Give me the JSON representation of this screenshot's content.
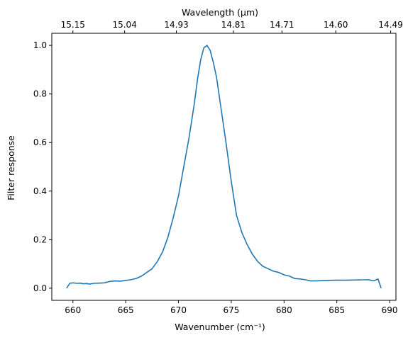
{
  "chart_data": {
    "type": "line",
    "xlabel": "Wavenumber (cm⁻¹)",
    "ylabel": "Filter response",
    "top_xlabel": "Wavelength (μm)",
    "xlim": [
      658.0,
      690.6
    ],
    "ylim": [
      -0.05,
      1.05
    ],
    "x_ticks": [
      660,
      665,
      670,
      675,
      680,
      685,
      690
    ],
    "y_ticks": [
      0.0,
      0.2,
      0.4,
      0.6,
      0.8,
      1.0
    ],
    "x_tick_labels": [
      "660",
      "665",
      "670",
      "675",
      "680",
      "685",
      "690"
    ],
    "y_tick_labels": [
      "0.0",
      "0.2",
      "0.4",
      "0.6",
      "0.8",
      "1.0"
    ],
    "top_ticks": [
      {
        "label": "15.15",
        "value": 660.0
      },
      {
        "label": "15.04",
        "value": 664.9
      },
      {
        "label": "14.93",
        "value": 669.8
      },
      {
        "label": "14.81",
        "value": 675.2
      },
      {
        "label": "14.71",
        "value": 679.8
      },
      {
        "label": "14.60",
        "value": 684.9
      },
      {
        "label": "14.49",
        "value": 690.1
      }
    ],
    "line_color": "#1f77b4",
    "grid": false,
    "series": [
      {
        "x": [
          659.4,
          659.7,
          660.0,
          660.4,
          660.7,
          661.0,
          661.3,
          661.6,
          662.0,
          662.5,
          663.0,
          663.5,
          664.0,
          664.5,
          665.0,
          665.5,
          666.0,
          666.5,
          667.0,
          667.5,
          668.0,
          668.5,
          669.0,
          669.5,
          670.0,
          670.5,
          671.0,
          671.5,
          671.8,
          672.1,
          672.4,
          672.7,
          673.0,
          673.3,
          673.6,
          674.0,
          674.5,
          675.0,
          675.5,
          676.0,
          676.5,
          677.0,
          677.5,
          678.0,
          678.5,
          679.0,
          679.5,
          680.0,
          680.5,
          681.0,
          681.5,
          682.0,
          682.5,
          683.0,
          684.0,
          685.0,
          686.0,
          687.0,
          688.0,
          688.5,
          688.9,
          689.2
        ],
        "y": [
          0.0,
          0.02,
          0.022,
          0.02,
          0.021,
          0.018,
          0.019,
          0.017,
          0.02,
          0.021,
          0.022,
          0.028,
          0.03,
          0.029,
          0.032,
          0.035,
          0.04,
          0.05,
          0.065,
          0.08,
          0.11,
          0.15,
          0.21,
          0.29,
          0.38,
          0.5,
          0.62,
          0.76,
          0.86,
          0.94,
          0.99,
          1.0,
          0.98,
          0.93,
          0.87,
          0.75,
          0.6,
          0.44,
          0.3,
          0.23,
          0.18,
          0.14,
          0.11,
          0.09,
          0.08,
          0.07,
          0.065,
          0.055,
          0.05,
          0.04,
          0.038,
          0.035,
          0.03,
          0.03,
          0.032,
          0.033,
          0.033,
          0.034,
          0.035,
          0.03,
          0.038,
          0.0
        ]
      }
    ]
  }
}
